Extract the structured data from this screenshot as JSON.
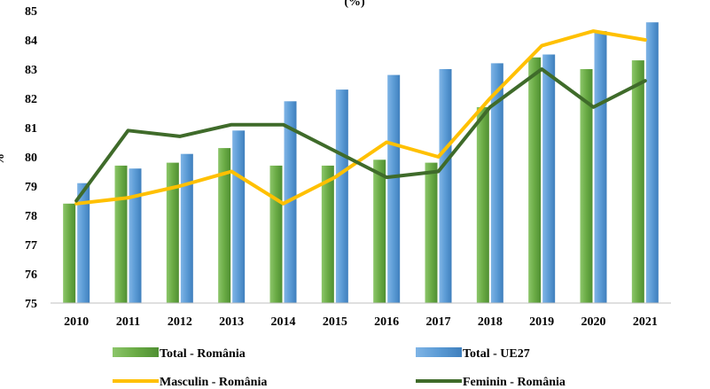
{
  "chart_data": {
    "type": "bar",
    "title": "(%)",
    "ylabel": "%",
    "xlabel": "",
    "ylim": [
      75,
      85
    ],
    "yticks": [
      75,
      76,
      77,
      78,
      79,
      80,
      81,
      82,
      83,
      84,
      85
    ],
    "grid": false,
    "legend_position": "bottom",
    "categories": [
      "2010",
      "2011",
      "2012",
      "2013",
      "2014",
      "2015",
      "2016",
      "2017",
      "2018",
      "2019",
      "2020",
      "2021"
    ],
    "bar_series": [
      {
        "name": "Total - România",
        "color": "#70ad47",
        "values": [
          78.4,
          79.7,
          79.8,
          80.3,
          79.7,
          79.7,
          79.9,
          79.8,
          81.7,
          83.4,
          83.0,
          83.3
        ]
      },
      {
        "name": "Total - UE27",
        "color": "#5b9bd5",
        "values": [
          79.1,
          79.6,
          80.1,
          80.9,
          81.9,
          82.3,
          82.8,
          83.0,
          83.2,
          83.5,
          84.3,
          84.6
        ]
      }
    ],
    "line_series": [
      {
        "name": "Masculin - România",
        "color": "#ffc000",
        "values": [
          78.4,
          78.6,
          79.0,
          79.5,
          78.4,
          79.3,
          80.5,
          80.0,
          82.0,
          83.8,
          84.3,
          84.0
        ]
      },
      {
        "name": "Feminin - România",
        "color": "#3f6b2a",
        "values": [
          78.5,
          80.9,
          80.7,
          81.1,
          81.1,
          80.2,
          79.3,
          79.5,
          81.7,
          83.0,
          81.7,
          82.6
        ]
      }
    ]
  }
}
